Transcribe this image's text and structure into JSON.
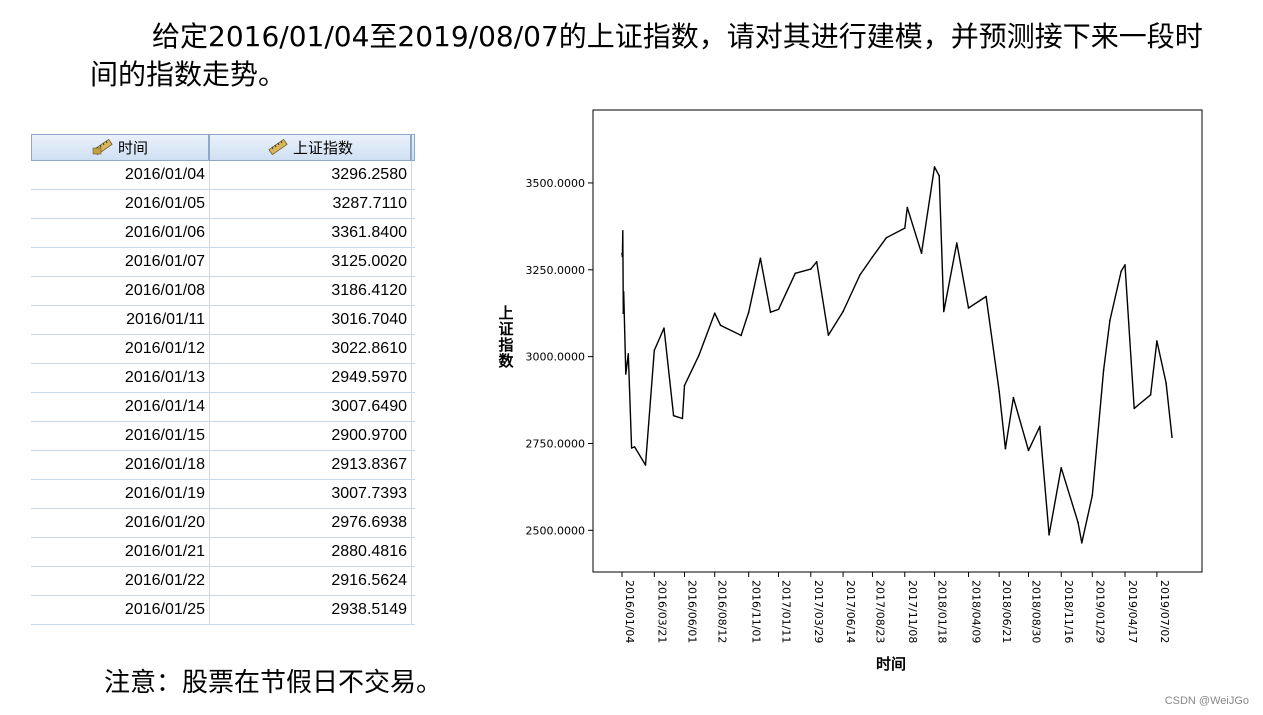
{
  "intro": {
    "text": "给定2016/01/04至2019/08/07的上证指数，请对其进行建模，并预测接下来一段时间的指数走势。"
  },
  "note": "注意：股票在节假日不交易。",
  "watermark": "CSDN @WeiJGo",
  "table": {
    "columns": [
      "时间",
      "上证指数"
    ],
    "rows": [
      [
        "2016/01/04",
        "3296.2580"
      ],
      [
        "2016/01/05",
        "3287.7110"
      ],
      [
        "2016/01/06",
        "3361.8400"
      ],
      [
        "2016/01/07",
        "3125.0020"
      ],
      [
        "2016/01/08",
        "3186.4120"
      ],
      [
        "2016/01/11",
        "3016.7040"
      ],
      [
        "2016/01/12",
        "3022.8610"
      ],
      [
        "2016/01/13",
        "2949.5970"
      ],
      [
        "2016/01/14",
        "3007.6490"
      ],
      [
        "2016/01/15",
        "2900.9700"
      ],
      [
        "2016/01/18",
        "2913.8367"
      ],
      [
        "2016/01/19",
        "3007.7393"
      ],
      [
        "2016/01/20",
        "2976.6938"
      ],
      [
        "2016/01/21",
        "2880.4816"
      ],
      [
        "2016/01/22",
        "2916.5624"
      ],
      [
        "2016/01/25",
        "2938.5149"
      ]
    ]
  },
  "chart_data": {
    "type": "line",
    "title": "",
    "xlabel": "时间",
    "ylabel": "上证指数",
    "ylim": [
      2380,
      3710
    ],
    "yticks": [
      "2500.0000",
      "2750.0000",
      "3000.0000",
      "3250.0000",
      "3500.0000"
    ],
    "ytick_values": [
      2500,
      2750,
      3000,
      3250,
      3500
    ],
    "xticks": [
      "2016/01/04",
      "2016/03/21",
      "2016/06/01",
      "2016/08/12",
      "2016/11/01",
      "2017/01/11",
      "2017/03/29",
      "2017/06/14",
      "2017/08/23",
      "2017/11/08",
      "2018/01/18",
      "2018/04/09",
      "2018/06/21",
      "2018/08/30",
      "2018/11/16",
      "2019/01/29",
      "2019/04/17",
      "2019/07/02"
    ],
    "series": [
      {
        "x": [
          "2016/01/04",
          "2016/01/05",
          "2016/01/06",
          "2016/01/07",
          "2016/01/08",
          "2016/01/13",
          "2016/01/19",
          "2016/01/27",
          "2016/02/03",
          "2016/02/29",
          "2016/03/21",
          "2016/04/13",
          "2016/05/06",
          "2016/05/27",
          "2016/06/01",
          "2016/07/05",
          "2016/08/12",
          "2016/08/26",
          "2016/10/14",
          "2016/11/01",
          "2016/11/29",
          "2016/12/23",
          "2017/01/11",
          "2017/02/20",
          "2017/03/29",
          "2017/04/12",
          "2017/05/10",
          "2017/06/14",
          "2017/07/24",
          "2017/08/23",
          "2017/09/25",
          "2017/11/08",
          "2017/11/14",
          "2017/12/18",
          "2018/01/18",
          "2018/01/29",
          "2018/02/09",
          "2018/03/12",
          "2018/04/09",
          "2018/05/21",
          "2018/06/21",
          "2018/07/06",
          "2018/07/25",
          "2018/08/30",
          "2018/09/26",
          "2018/10/18",
          "2018/11/16",
          "2018/12/26",
          "2019/01/04",
          "2019/01/29",
          "2019/02/25",
          "2019/03/12",
          "2019/04/08",
          "2019/04/17",
          "2019/05/09",
          "2019/06/17",
          "2019/07/02",
          "2019/07/24",
          "2019/08/07"
        ],
        "values": [
          3296,
          3288,
          3362,
          3125,
          3186,
          2950,
          3008,
          2737,
          2740,
          2688,
          3018,
          3082,
          2830,
          2822,
          2917,
          3003,
          3125,
          3090,
          3061,
          3128,
          3283,
          3128,
          3136,
          3240,
          3252,
          3273,
          3062,
          3130,
          3235,
          3287,
          3342,
          3370,
          3429,
          3298,
          3546,
          3521,
          3130,
          3327,
          3140,
          3173,
          2900,
          2735,
          2882,
          2730,
          2799,
          2487,
          2680,
          2523,
          2464,
          2600,
          2961,
          3104,
          3246,
          3264,
          2851,
          2890,
          3045,
          2924,
          2768
        ]
      }
    ]
  }
}
